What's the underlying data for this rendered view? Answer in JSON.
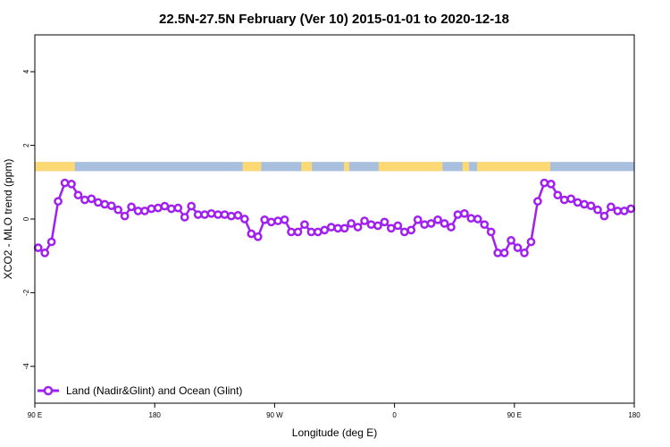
{
  "chart_data": {
    "type": "line",
    "title": "22.5N-27.5N February (Ver 10)   2015-01-01 to 2020-12-18",
    "xlabel": "Longitude (deg E)",
    "ylabel": "XCO2 - MLO trend (ppm)",
    "xlim": [
      90,
      540
    ],
    "ylim": [
      -5,
      5
    ],
    "x_ticks": [
      {
        "value": 90,
        "label": "90 E"
      },
      {
        "value": 180,
        "label": "180"
      },
      {
        "value": 270,
        "label": "90 W"
      },
      {
        "value": 360,
        "label": "0"
      },
      {
        "value": 450,
        "label": "90 E"
      },
      {
        "value": 540,
        "label": "180"
      }
    ],
    "y_ticks": [
      {
        "value": -4,
        "label": "-4"
      },
      {
        "value": -2,
        "label": "-2"
      },
      {
        "value": 0,
        "label": "0"
      },
      {
        "value": 2,
        "label": "2"
      },
      {
        "value": 4,
        "label": "4"
      }
    ],
    "land_ocean_strip": {
      "y_range": [
        1.3,
        1.55
      ],
      "ocean_color": "#a8bfde",
      "land_color": "#fdd976",
      "land_segments": [
        [
          90,
          120
        ],
        [
          246,
          260
        ],
        [
          290,
          298
        ],
        [
          322,
          326
        ],
        [
          348,
          396
        ],
        [
          411,
          416
        ],
        [
          422,
          477
        ]
      ]
    },
    "series": [
      {
        "name": "Land (Nadir&Glint) and Ocean (Glint)",
        "color": "#a020f0",
        "x": [
          92.5,
          97.5,
          102.5,
          107.5,
          112.5,
          117.5,
          122.5,
          127.5,
          132.5,
          137.5,
          142.5,
          147.5,
          152.5,
          157.5,
          162.5,
          167.5,
          172.5,
          177.5,
          182.5,
          187.5,
          192.5,
          197.5,
          202.5,
          207.5,
          212.5,
          217.5,
          222.5,
          227.5,
          232.5,
          237.5,
          242.5,
          247.5,
          252.5,
          257.5,
          262.5,
          267.5,
          272.5,
          277.5,
          282.5,
          287.5,
          292.5,
          297.5,
          302.5,
          307.5,
          312.5,
          317.5,
          322.5,
          327.5,
          332.5,
          337.5,
          342.5,
          347.5,
          352.5,
          357.5,
          362.5,
          367.5,
          372.5,
          377.5,
          382.5,
          387.5,
          392.5,
          397.5,
          402.5,
          407.5,
          412.5,
          417.5,
          422.5,
          427.5,
          432.5,
          437.5,
          442.5,
          447.5,
          452.5,
          457.5,
          462.5,
          467.5,
          472.5,
          477.5,
          482.5,
          487.5,
          492.5,
          497.5,
          502.5,
          507.5,
          512.5,
          517.5,
          522.5,
          527.5,
          532.5,
          537.5
        ],
        "values": [
          -0.78,
          -0.92,
          -0.62,
          0.48,
          0.98,
          0.95,
          0.65,
          0.52,
          0.55,
          0.45,
          0.4,
          0.36,
          0.25,
          0.08,
          0.33,
          0.22,
          0.22,
          0.28,
          0.3,
          0.35,
          0.28,
          0.3,
          0.05,
          0.35,
          0.12,
          0.12,
          0.15,
          0.12,
          0.12,
          0.08,
          0.1,
          0.0,
          -0.4,
          -0.48,
          -0.02,
          -0.08,
          -0.05,
          -0.02,
          -0.35,
          -0.35,
          -0.15,
          -0.35,
          -0.35,
          -0.3,
          -0.22,
          -0.25,
          -0.25,
          -0.12,
          -0.22,
          -0.05,
          -0.15,
          -0.18,
          -0.08,
          -0.25,
          -0.18,
          -0.35,
          -0.3,
          -0.02,
          -0.15,
          -0.12,
          -0.02,
          -0.12,
          -0.22,
          0.12,
          0.15,
          0.02,
          0.0,
          -0.15,
          -0.35,
          -0.92,
          -0.92,
          -0.58,
          -0.78,
          -0.92,
          -0.62,
          0.48,
          0.98,
          0.95,
          0.65,
          0.52,
          0.55,
          0.45,
          0.4,
          0.36,
          0.25,
          0.08,
          0.33,
          0.22,
          0.22,
          0.28
        ]
      }
    ],
    "legend_position": "bottom-left",
    "grid": false
  }
}
